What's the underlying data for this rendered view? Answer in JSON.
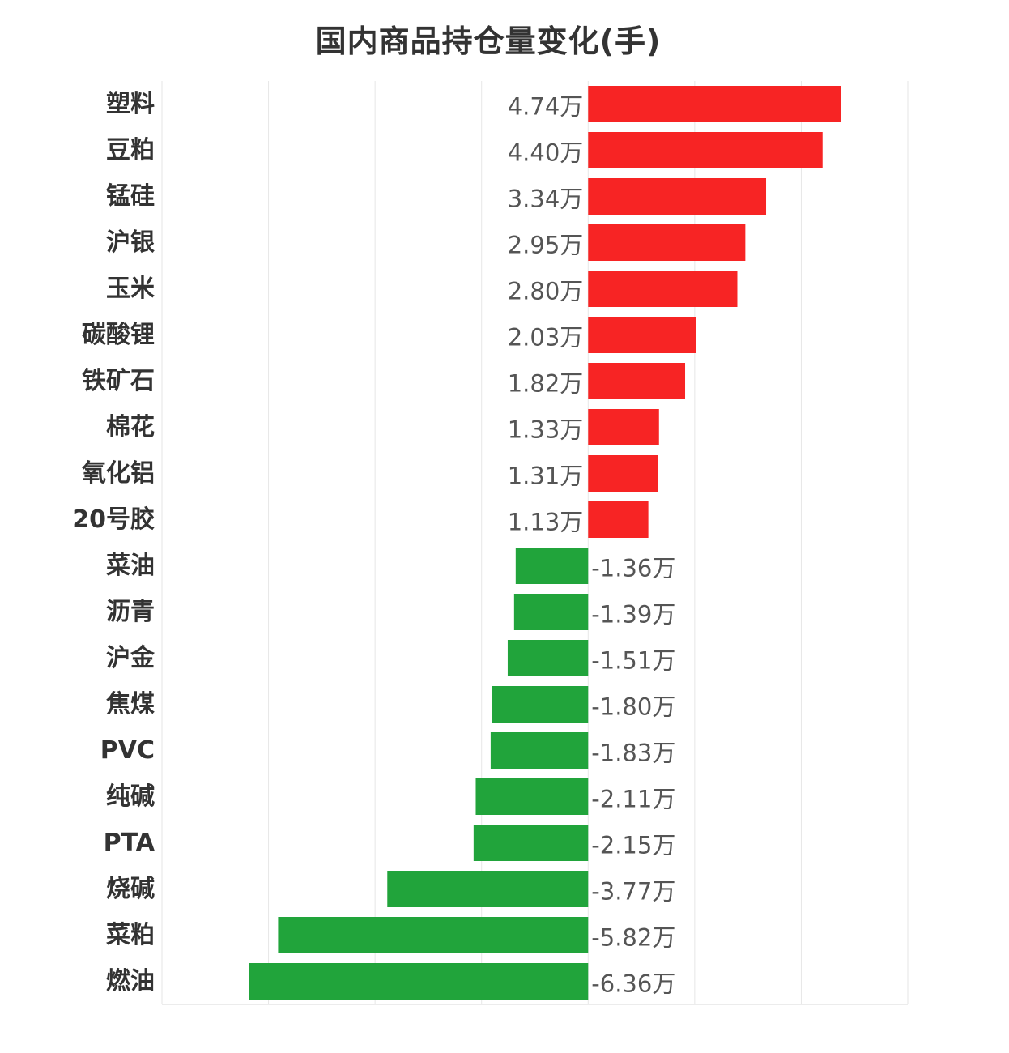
{
  "title": "国内商品持仓量变化(手)",
  "colors": {
    "positive": "#f72424",
    "negative": "#21a43b",
    "grid": "#e6e6e6",
    "text": "#333333",
    "value_text": "#555555"
  },
  "chart_data": {
    "type": "bar",
    "orientation": "horizontal",
    "title": "国内商品持仓量变化(手)",
    "unit": "万手",
    "categories": [
      "塑料",
      "豆粕",
      "锰硅",
      "沪银",
      "玉米",
      "碳酸锂",
      "铁矿石",
      "棉花",
      "氧化铝",
      "20号胶",
      "菜油",
      "沥青",
      "沪金",
      "焦煤",
      "PVC",
      "纯碱",
      "PTA",
      "烧碱",
      "菜粕",
      "燃油"
    ],
    "values": [
      4.74,
      4.4,
      3.34,
      2.95,
      2.8,
      2.03,
      1.82,
      1.33,
      1.31,
      1.13,
      -1.36,
      -1.39,
      -1.51,
      -1.8,
      -1.83,
      -2.11,
      -2.15,
      -3.77,
      -5.82,
      -6.36
    ],
    "value_labels": [
      "4.74万",
      "4.40万",
      "3.34万",
      "2.95万",
      "2.80万",
      "2.03万",
      "1.82万",
      "1.33万",
      "1.31万",
      "1.13万",
      "-1.36万",
      "-1.39万",
      "-1.51万",
      "-1.80万",
      "-1.83万",
      "-2.11万",
      "-2.15万",
      "-3.77万",
      "-5.82万",
      "-6.36万"
    ],
    "xlim": [
      -8,
      6
    ],
    "grid": true
  }
}
